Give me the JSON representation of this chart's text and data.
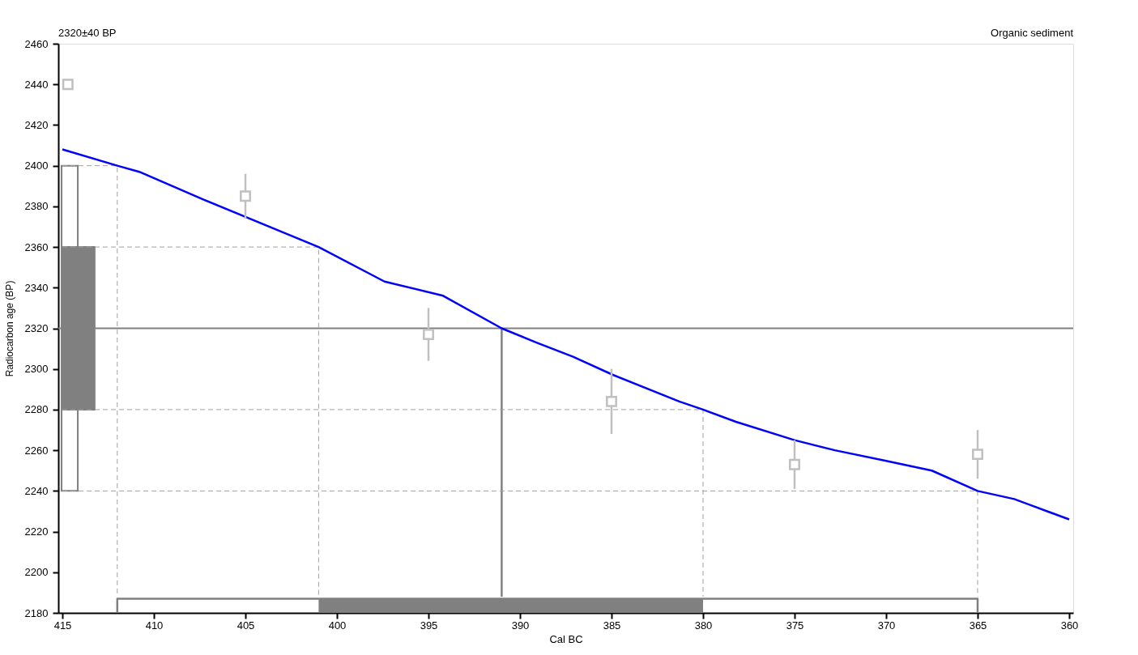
{
  "chart_data": {
    "type": "line",
    "xlabel": "Cal BC",
    "ylabel": "Radiocarbon age (BP)",
    "annotations": [
      "2320±40 BP",
      "Organic sediment"
    ],
    "xlim": [
      415,
      360
    ],
    "xticks": [
      415,
      410,
      405,
      400,
      395,
      390,
      385,
      380,
      375,
      370,
      365,
      360
    ],
    "ylim": [
      2180,
      2460
    ],
    "yticks": [
      2180,
      2200,
      2220,
      2240,
      2260,
      2280,
      2300,
      2320,
      2340,
      2360,
      2380,
      2400,
      2420,
      2440,
      2460
    ],
    "grid": false,
    "ref_lines": [
      {
        "axis": "y",
        "value": 2320,
        "color": "#808080",
        "line_style": "solid"
      }
    ],
    "series": [
      {
        "type": "bar",
        "color": "#ffffff",
        "x": [
          414.6
        ],
        "base": [
          2240
        ],
        "values": [
          160
        ]
      },
      {
        "type": "bar",
        "color": "#808080",
        "x": [
          414.1
        ],
        "base": [
          2280
        ],
        "values": [
          80
        ]
      },
      {
        "color": "#808080",
        "line_style": "solid",
        "x": [
          412,
          412,
          365,
          365
        ],
        "values": [
          2180,
          2187,
          2187,
          2180
        ]
      },
      {
        "type": "area",
        "color": "#808080",
        "x": [
          401,
          380
        ],
        "values": [
          2187,
          2187
        ]
      },
      {
        "color": "#808080",
        "line_style": "solid",
        "x": [
          391,
          391
        ],
        "values": [
          2320,
          2188
        ]
      },
      {
        "color": "#a0a0a0",
        "line_style": "dashed",
        "x": [
          415,
          412,
          412
        ],
        "values": [
          2400,
          2400,
          2188
        ]
      },
      {
        "color": "#a0a0a0",
        "line_style": "dashed",
        "x": [
          415,
          401,
          401
        ],
        "values": [
          2360,
          2360,
          2188
        ]
      },
      {
        "color": "#a0a0a0",
        "line_style": "dashed",
        "x": [
          415,
          380,
          380
        ],
        "values": [
          2280,
          2280,
          2188
        ]
      },
      {
        "color": "#a0a0a0",
        "line_style": "dashed",
        "x": [
          415,
          365,
          365
        ],
        "values": [
          2240,
          2240,
          2188
        ]
      },
      {
        "color": "#0000ff",
        "line_style": "solid",
        "x": [
          415,
          412,
          410.8,
          407.2,
          401,
          397.4,
          394.2,
          391,
          389.1,
          387.1,
          384.9,
          381.3,
          380,
          378.2,
          375,
          372.8,
          370.1,
          367.5,
          365,
          363,
          361.2,
          360
        ],
        "values": [
          2408,
          2400,
          2397,
          2383,
          2360,
          2343,
          2336,
          2320,
          2313,
          2306,
          2297,
          2284,
          2280,
          2274,
          2265,
          2260,
          2255,
          2250,
          2240,
          2236,
          2230,
          2226
        ]
      },
      {
        "type": "scatter",
        "color": "#c0c0c0",
        "marker": "square",
        "x": [
          414.7,
          405,
          395,
          385,
          375,
          365
        ],
        "values": [
          2440,
          2385,
          2317,
          2284,
          2253,
          2258
        ],
        "errors": [
          null,
          11,
          13,
          16,
          12,
          12
        ]
      }
    ]
  }
}
